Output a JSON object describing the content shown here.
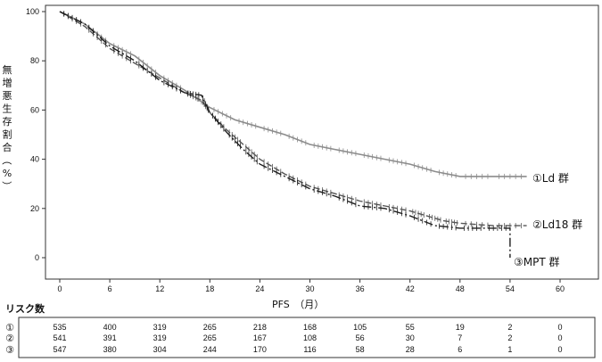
{
  "chart_data": {
    "type": "line",
    "xlabel": "PFS　（月）",
    "ylabel": "無増悪生存割合（%）",
    "xlim": [
      -2,
      66
    ],
    "ylim": [
      -8,
      101
    ],
    "x_ticks": [
      0,
      6,
      12,
      18,
      24,
      30,
      36,
      42,
      48,
      54,
      60
    ],
    "y_ticks": [
      0,
      20,
      40,
      60,
      80,
      100
    ],
    "series": [
      {
        "name": "①Ld 群",
        "color": "#8c8c8c",
        "dash": "none",
        "points": [
          [
            0,
            100
          ],
          [
            3,
            95
          ],
          [
            6,
            87
          ],
          [
            9,
            82
          ],
          [
            12,
            74
          ],
          [
            15,
            68
          ],
          [
            18,
            61
          ],
          [
            21,
            56
          ],
          [
            24,
            53
          ],
          [
            27,
            50
          ],
          [
            30,
            46
          ],
          [
            33,
            44
          ],
          [
            36,
            42
          ],
          [
            39,
            40
          ],
          [
            42,
            38
          ],
          [
            45,
            35
          ],
          [
            48,
            33
          ],
          [
            52,
            33
          ],
          [
            56,
            33
          ]
        ]
      },
      {
        "name": "②Ld18 群",
        "color": "#555555",
        "dash": "7,3",
        "points": [
          [
            0,
            100
          ],
          [
            3,
            94
          ],
          [
            6,
            85
          ],
          [
            9,
            79
          ],
          [
            12,
            73
          ],
          [
            15,
            67
          ],
          [
            17,
            64
          ],
          [
            18,
            59
          ],
          [
            20,
            52
          ],
          [
            22,
            46
          ],
          [
            24,
            40
          ],
          [
            27,
            34
          ],
          [
            30,
            29
          ],
          [
            33,
            26
          ],
          [
            36,
            23
          ],
          [
            39,
            21
          ],
          [
            42,
            19
          ],
          [
            44,
            17
          ],
          [
            46,
            15
          ],
          [
            48,
            14
          ],
          [
            52,
            13
          ],
          [
            56,
            13
          ]
        ]
      },
      {
        "name": "③MPT 群",
        "color": "#1e1e1e",
        "dash": "10,3,2,3",
        "points": [
          [
            0,
            100
          ],
          [
            3,
            95
          ],
          [
            6,
            86
          ],
          [
            9,
            80
          ],
          [
            12,
            72
          ],
          [
            15,
            67
          ],
          [
            17,
            66
          ],
          [
            18,
            59
          ],
          [
            20,
            51
          ],
          [
            22,
            44
          ],
          [
            24,
            38
          ],
          [
            27,
            33
          ],
          [
            30,
            28
          ],
          [
            33,
            25
          ],
          [
            36,
            21
          ],
          [
            39,
            20
          ],
          [
            42,
            17
          ],
          [
            45,
            13
          ],
          [
            48,
            12
          ],
          [
            51,
            12
          ],
          [
            54,
            12
          ],
          [
            54,
            0
          ]
        ]
      }
    ],
    "annotations": [
      "①Ld 群",
      "②Ld18 群",
      "③MPT 群"
    ],
    "risk_table": {
      "title": "リスク数",
      "rows": [
        {
          "marker": "①",
          "values": [
            "535",
            "400",
            "319",
            "265",
            "218",
            "168",
            "105",
            "55",
            "19",
            "2",
            "0"
          ]
        },
        {
          "marker": "②",
          "values": [
            "541",
            "391",
            "319",
            "265",
            "167",
            "108",
            "56",
            "30",
            "7",
            "2",
            "0"
          ]
        },
        {
          "marker": "③",
          "values": [
            "547",
            "380",
            "304",
            "244",
            "170",
            "116",
            "58",
            "28",
            "6",
            "1",
            "0"
          ]
        }
      ]
    }
  }
}
